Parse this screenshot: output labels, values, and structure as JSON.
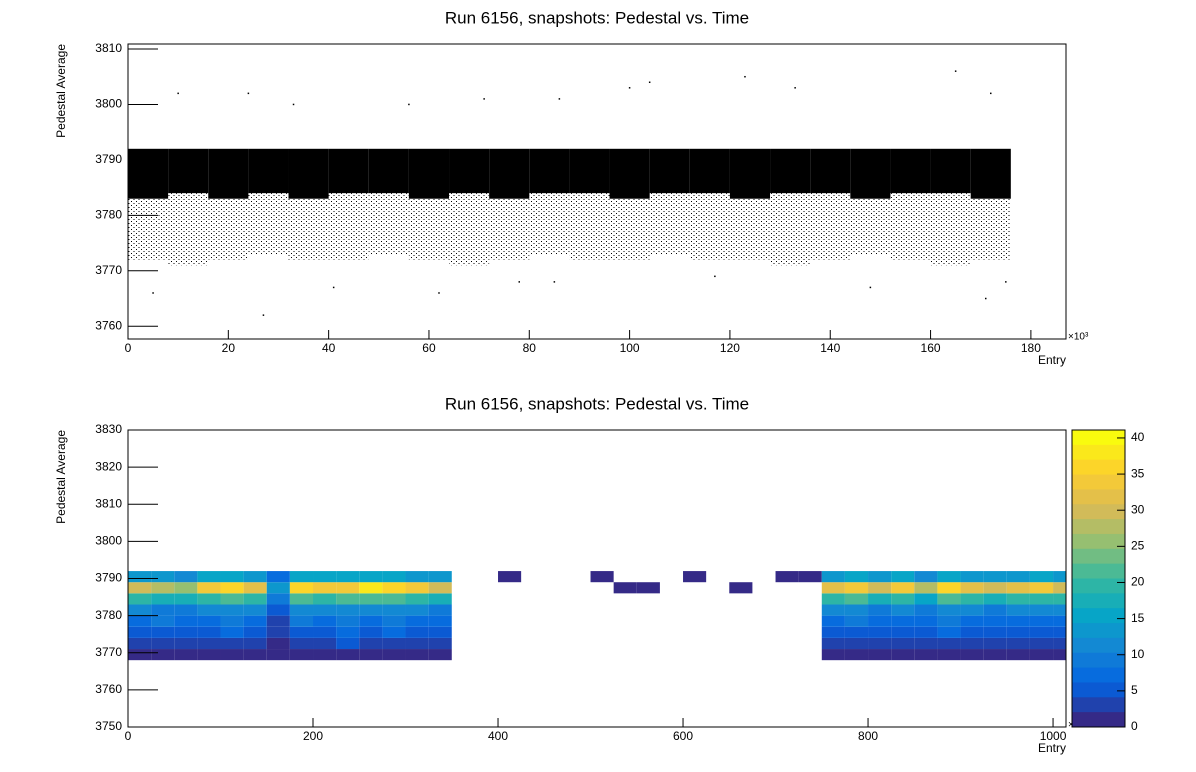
{
  "chart_data": [
    {
      "type": "scatter",
      "title": "Run 6156, snapshots: Pedestal vs. Time",
      "y_label": "Pedestal Average",
      "x_label": "Entry",
      "x_exponent": "×10³",
      "xlim": [
        0,
        187
      ],
      "ylim": [
        3757.7,
        3810.9
      ],
      "xticks": [
        0,
        20,
        40,
        60,
        80,
        100,
        120,
        140,
        160,
        180
      ],
      "yticks": [
        3760,
        3770,
        3780,
        3790,
        3800,
        3810
      ],
      "color": "#000000",
      "x_edges": [
        0,
        8,
        16,
        24,
        32,
        40,
        48,
        56,
        64,
        72,
        80,
        88,
        96,
        104,
        112,
        120,
        128,
        136,
        144,
        152,
        160,
        168,
        176
      ],
      "core_low": [
        3783,
        3784,
        3783,
        3784,
        3783,
        3784,
        3784,
        3783,
        3784,
        3783,
        3784,
        3784,
        3783,
        3784,
        3784,
        3783,
        3784,
        3784,
        3783,
        3784,
        3784,
        3783
      ],
      "core_high": [
        3792,
        3792,
        3792,
        3792,
        3792,
        3792,
        3792,
        3792,
        3792,
        3792,
        3792,
        3792,
        3792,
        3792,
        3792,
        3792,
        3792,
        3792,
        3792,
        3792,
        3792,
        3792
      ],
      "tail_low": [
        3772,
        3771,
        3772,
        3773,
        3772,
        3772,
        3773,
        3772,
        3771,
        3772,
        3773,
        3772,
        3772,
        3773,
        3772,
        3772,
        3771,
        3772,
        3773,
        3772,
        3771,
        3772
      ],
      "x": [
        10,
        24,
        33,
        56,
        71,
        86,
        100,
        104,
        123,
        133,
        165,
        172,
        27,
        41,
        62,
        78,
        148,
        171,
        175,
        5,
        85,
        117
      ],
      "y": [
        3802,
        3802,
        3800,
        3800,
        3801,
        3801,
        3803,
        3804,
        3805,
        3803,
        3806,
        3802,
        3762,
        3767,
        3766,
        3768,
        3767,
        3765,
        3768,
        3766,
        3768,
        3769
      ]
    },
    {
      "type": "heatmap",
      "title": "Run 6156, snapshots: Pedestal vs. Time",
      "y_label": "Pedestal Average",
      "x_label": "Entry",
      "x_exponent": "×10³",
      "xlim": [
        0,
        1014
      ],
      "ylim": [
        3750,
        3830
      ],
      "zlim": [
        0,
        41.1
      ],
      "xticks": [
        0,
        200,
        400,
        600,
        800,
        1000
      ],
      "yticks": [
        3750,
        3760,
        3770,
        3780,
        3790,
        3800,
        3810,
        3820,
        3830
      ],
      "zticks": [
        0,
        5,
        10,
        15,
        20,
        25,
        30,
        35,
        40
      ],
      "xbins": [
        0,
        25,
        50,
        75,
        100,
        125,
        150,
        175,
        200,
        225,
        250,
        275,
        300,
        325,
        350,
        375,
        400,
        425,
        450,
        475,
        500,
        525,
        550,
        575,
        600,
        625,
        650,
        675,
        700,
        725,
        750,
        775,
        800,
        825,
        850,
        875,
        900,
        925,
        950,
        975,
        1000,
        1025
      ],
      "ybins": [
        3768,
        3771,
        3774,
        3777,
        3780,
        3783,
        3786,
        3789,
        3792
      ],
      "z": [
        [
          2,
          4,
          6,
          8,
          11,
          19,
          30,
          14
        ],
        [
          2,
          3,
          6,
          9,
          10,
          18,
          28,
          13
        ],
        [
          1,
          3,
          5,
          7,
          10,
          17,
          26,
          12
        ],
        [
          2,
          4,
          6,
          8,
          11,
          20,
          33,
          15
        ],
        [
          2,
          4,
          7,
          9,
          12,
          21,
          35,
          15
        ],
        [
          2,
          4,
          6,
          8,
          11,
          19,
          31,
          14
        ],
        [
          1,
          2,
          3,
          4,
          5,
          9,
          14,
          7
        ],
        [
          2,
          4,
          6,
          9,
          12,
          22,
          36,
          16
        ],
        [
          2,
          4,
          6,
          8,
          11,
          20,
          33,
          15
        ],
        [
          2,
          5,
          7,
          9,
          12,
          21,
          34,
          15
        ],
        [
          2,
          4,
          6,
          8,
          11,
          22,
          37,
          16
        ],
        [
          2,
          4,
          7,
          9,
          12,
          21,
          35,
          15
        ],
        [
          2,
          4,
          6,
          8,
          11,
          20,
          33,
          14
        ],
        [
          1,
          3,
          5,
          7,
          10,
          18,
          30,
          13
        ],
        [
          0,
          0,
          0,
          0,
          0,
          0,
          0,
          0
        ],
        [
          0,
          0,
          0,
          0,
          0,
          0,
          0,
          0
        ],
        [
          0,
          0,
          0,
          0,
          0,
          0,
          0,
          1
        ],
        [
          0,
          0,
          0,
          0,
          0,
          0,
          0,
          0
        ],
        [
          0,
          0,
          0,
          0,
          0,
          0,
          0,
          0
        ],
        [
          0,
          0,
          0,
          0,
          0,
          0,
          0,
          0
        ],
        [
          0,
          0,
          0,
          0,
          0,
          0,
          0,
          1
        ],
        [
          0,
          0,
          0,
          0,
          0,
          0,
          1,
          0
        ],
        [
          0,
          0,
          0,
          0,
          0,
          0,
          1,
          0
        ],
        [
          0,
          0,
          0,
          0,
          0,
          0,
          0,
          0
        ],
        [
          0,
          0,
          0,
          0,
          0,
          0,
          0,
          1
        ],
        [
          0,
          0,
          0,
          0,
          0,
          0,
          0,
          0
        ],
        [
          0,
          0,
          0,
          0,
          0,
          0,
          1,
          0
        ],
        [
          0,
          0,
          0,
          0,
          0,
          0,
          0,
          0
        ],
        [
          0,
          0,
          0,
          0,
          0,
          0,
          0,
          1
        ],
        [
          0,
          0,
          0,
          0,
          0,
          0,
          0,
          1
        ],
        [
          2,
          4,
          6,
          8,
          11,
          20,
          32,
          14
        ],
        [
          2,
          4,
          6,
          9,
          12,
          21,
          34,
          15
        ],
        [
          2,
          3,
          5,
          7,
          10,
          18,
          29,
          13
        ],
        [
          2,
          4,
          6,
          8,
          11,
          20,
          33,
          15
        ],
        [
          1,
          3,
          5,
          7,
          9,
          16,
          27,
          12
        ],
        [
          2,
          4,
          7,
          9,
          12,
          21,
          35,
          15
        ],
        [
          2,
          4,
          6,
          8,
          11,
          20,
          32,
          14
        ],
        [
          1,
          3,
          5,
          7,
          10,
          18,
          29,
          13
        ],
        [
          2,
          4,
          6,
          8,
          11,
          19,
          31,
          14
        ],
        [
          2,
          4,
          6,
          8,
          11,
          20,
          33,
          15
        ],
        [
          2,
          4,
          6,
          8,
          11,
          19,
          30,
          14
        ]
      ]
    }
  ]
}
